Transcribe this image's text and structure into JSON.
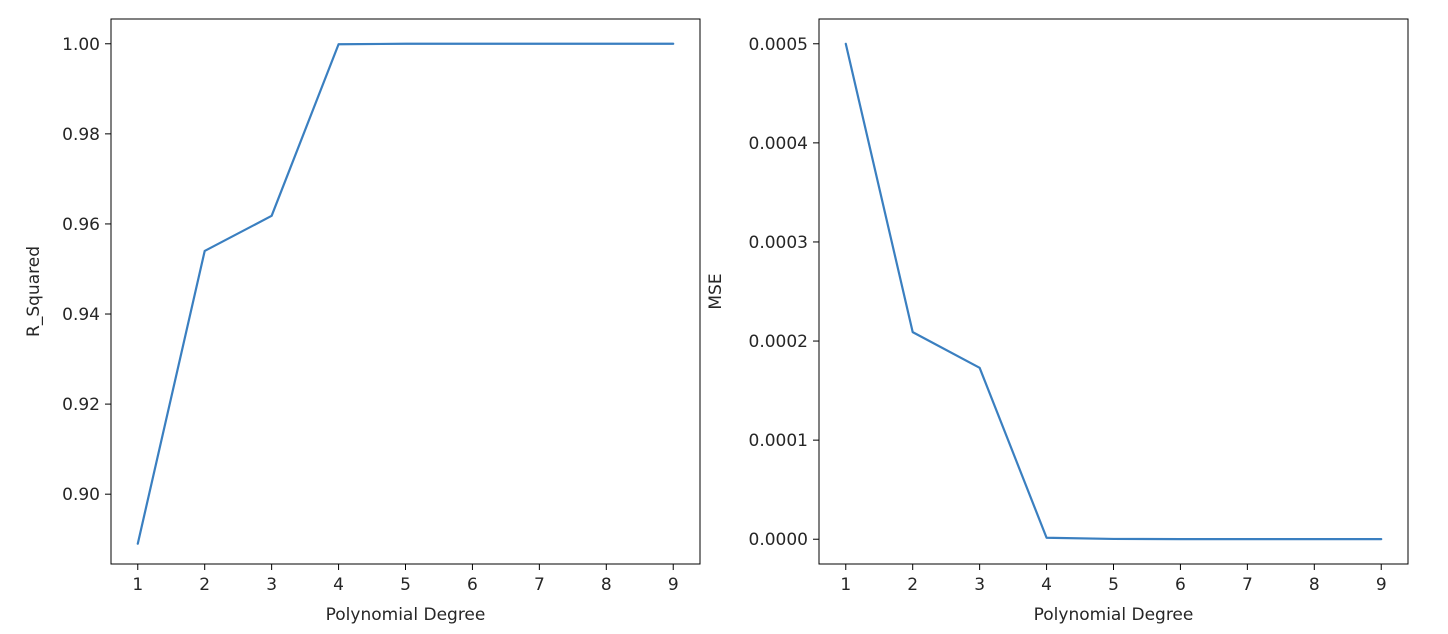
{
  "colors": {
    "line": "#3a7fc0",
    "axis": "#000000",
    "text": "#262626"
  },
  "chart_data": [
    {
      "type": "line",
      "xlabel": "Polynomial Degree",
      "ylabel": "R_Squared",
      "xlim": [
        0.6,
        9.4
      ],
      "ylim": [
        0.8845,
        1.0055
      ],
      "xticks": [
        1,
        2,
        3,
        4,
        5,
        6,
        7,
        8,
        9
      ],
      "xtick_labels": [
        "1",
        "2",
        "3",
        "4",
        "5",
        "6",
        "7",
        "8",
        "9"
      ],
      "yticks": [
        0.9,
        0.92,
        0.94,
        0.96,
        0.98,
        1.0
      ],
      "ytick_labels": [
        "0.90",
        "0.92",
        "0.94",
        "0.96",
        "0.98",
        "1.00"
      ],
      "grid": false,
      "x": [
        1,
        2,
        3,
        4,
        5,
        6,
        7,
        8,
        9
      ],
      "values": [
        0.889,
        0.954,
        0.9618,
        0.9999,
        1.0,
        1.0,
        1.0,
        1.0,
        1.0
      ]
    },
    {
      "type": "line",
      "xlabel": "Polynomial Degree",
      "ylabel": "MSE",
      "xlim": [
        0.6,
        9.4
      ],
      "ylim": [
        -2.5e-05,
        0.000525
      ],
      "xticks": [
        1,
        2,
        3,
        4,
        5,
        6,
        7,
        8,
        9
      ],
      "xtick_labels": [
        "1",
        "2",
        "3",
        "4",
        "5",
        "6",
        "7",
        "8",
        "9"
      ],
      "yticks": [
        0.0,
        0.0001,
        0.0002,
        0.0003,
        0.0004,
        0.0005
      ],
      "ytick_labels": [
        "0.0000",
        "0.0001",
        "0.0002",
        "0.0003",
        "0.0004",
        "0.0005"
      ],
      "grid": false,
      "x": [
        1,
        2,
        3,
        4,
        5,
        6,
        7,
        8,
        9
      ],
      "values": [
        0.0005,
        0.000209,
        0.000173,
        1.5e-06,
        3e-07,
        1e-07,
        1e-07,
        1e-07,
        1e-07
      ]
    }
  ]
}
